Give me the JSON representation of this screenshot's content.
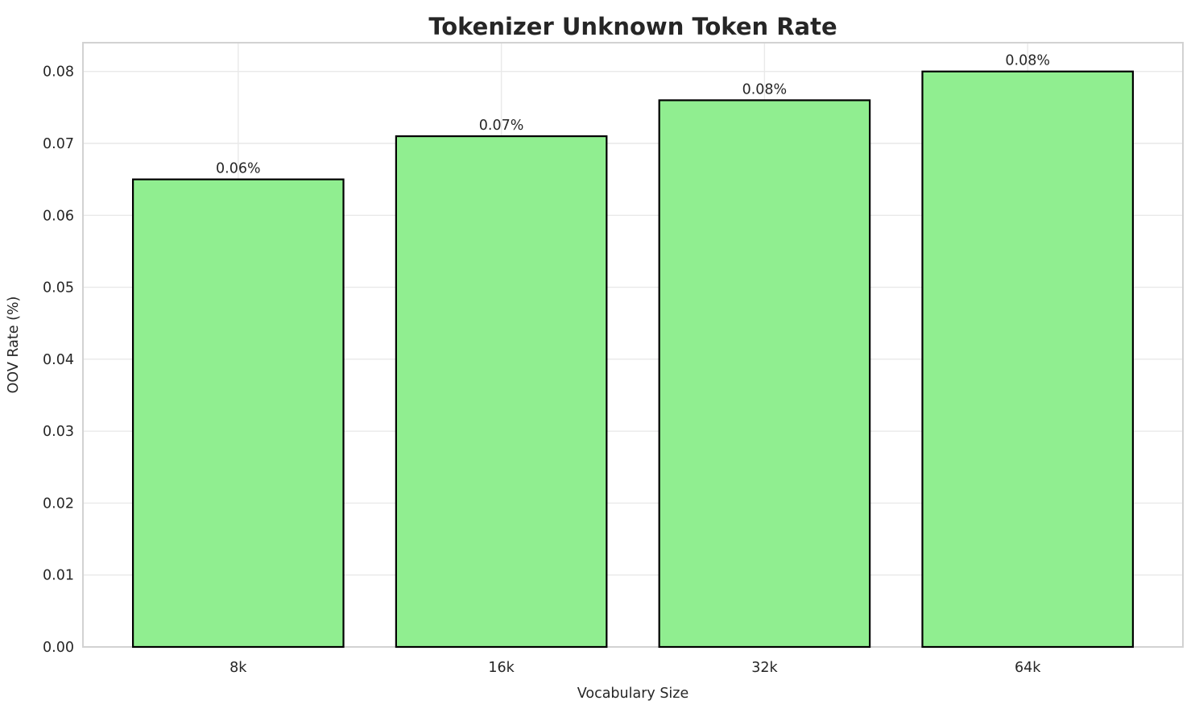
{
  "chart_data": {
    "type": "bar",
    "title": "Tokenizer Unknown Token Rate",
    "xlabel": "Vocabulary Size",
    "ylabel": "OOV Rate (%)",
    "categories": [
      "8k",
      "16k",
      "32k",
      "64k"
    ],
    "values": [
      0.065,
      0.071,
      0.076,
      0.08
    ],
    "bar_labels": [
      "0.06%",
      "0.07%",
      "0.08%",
      "0.08%"
    ],
    "ylim": [
      0,
      0.084
    ],
    "yticks": [
      0,
      0.01,
      0.02,
      0.03,
      0.04,
      0.05,
      0.06,
      0.07,
      0.08
    ],
    "ytick_labels": [
      "0.00",
      "0.01",
      "0.02",
      "0.03",
      "0.04",
      "0.05",
      "0.06",
      "0.07",
      "0.08"
    ],
    "grid": true,
    "legend_position": "none",
    "colors": {
      "bar_fill": "#90EE90",
      "bar_edge": "#000000",
      "gridline": "#e9e9e9",
      "spine": "#d2d2d2",
      "text": "#262626",
      "background": "#ffffff"
    }
  }
}
